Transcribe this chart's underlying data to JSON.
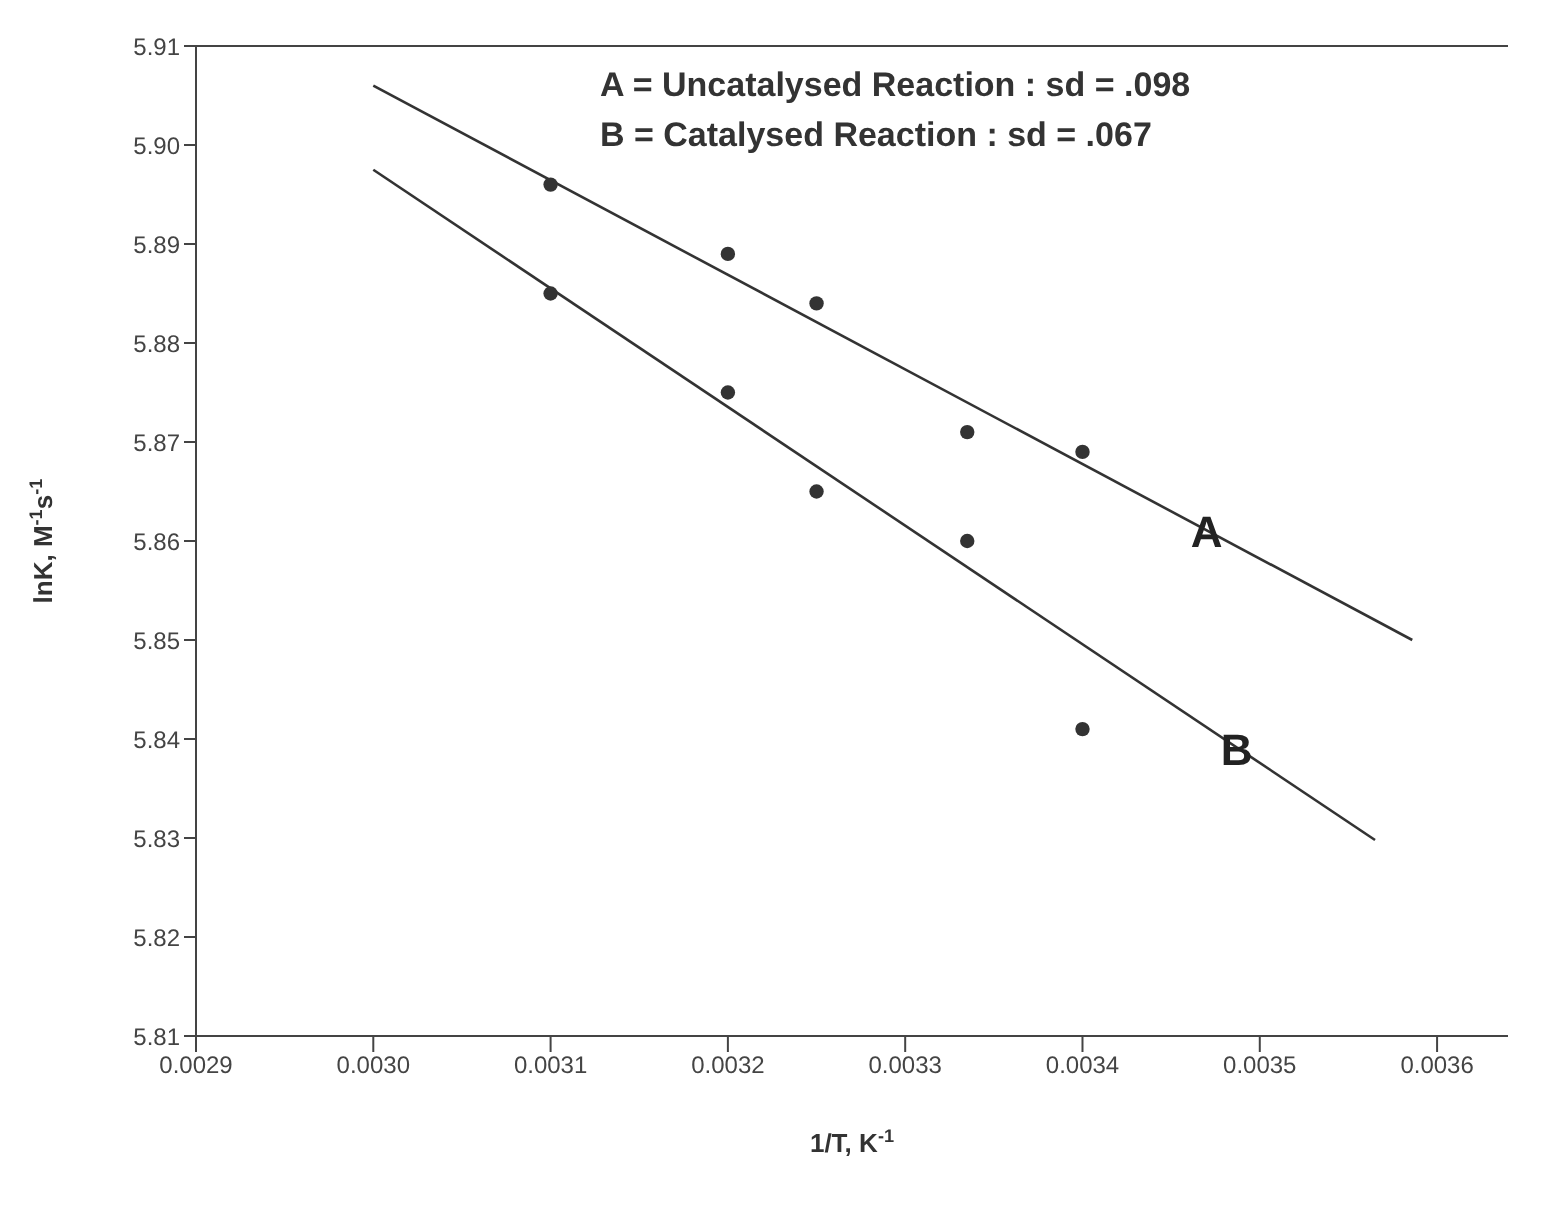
{
  "chart_data": {
    "type": "scatter",
    "xlabel": "1/T, K$^{-1}$",
    "ylabel": "lnK, M$^{-1}$s$^{-1}$",
    "xlim": [
      0.0029,
      0.00364
    ],
    "xticks": [
      0.0029,
      {
        "value": 0.003,
        "label": "0.0030"
      },
      0.0031,
      0.0032,
      0.0033,
      0.0034,
      0.0035,
      0.0036
    ],
    "ylim": [
      5.81,
      5.91
    ],
    "yticks": [
      5.81,
      5.82,
      5.83,
      5.84,
      5.85,
      5.86,
      5.87,
      5.88,
      5.89,
      {
        "value": 5.9,
        "label": "5.90"
      },
      5.91
    ],
    "grid": false,
    "legend": false,
    "series": [
      {
        "marker": "circle",
        "color": "#333333",
        "x": [
          0.0031,
          0.0032,
          0.00325,
          0.003335,
          0.0034
        ],
        "values": [
          5.896,
          5.889,
          5.884,
          5.871,
          5.869
        ]
      },
      {
        "marker": "circle",
        "color": "#333333",
        "x": [
          0.0031,
          0.0032,
          0.00325,
          0.003335,
          0.0034
        ],
        "values": [
          5.885,
          5.875,
          5.865,
          5.86,
          5.841
        ]
      },
      {
        "type": "line",
        "marker": "none",
        "color": "#333333",
        "x": [
          0.003,
          0.003586
        ],
        "values": [
          5.906,
          5.85
        ]
      },
      {
        "type": "line",
        "marker": "none",
        "color": "#333333",
        "x": [
          0.003,
          0.003565
        ],
        "values": [
          5.8975,
          5.8298
        ]
      }
    ],
    "annotations": [
      "A = Uncatalysed Reaction : sd = .098",
      "B = Catalysed Reaction : sd = .067",
      {
        "text": "A",
        "x": 0.00347,
        "y": 5.861
      },
      {
        "text": "B",
        "x": 0.003487,
        "y": 5.839
      }
    ]
  }
}
